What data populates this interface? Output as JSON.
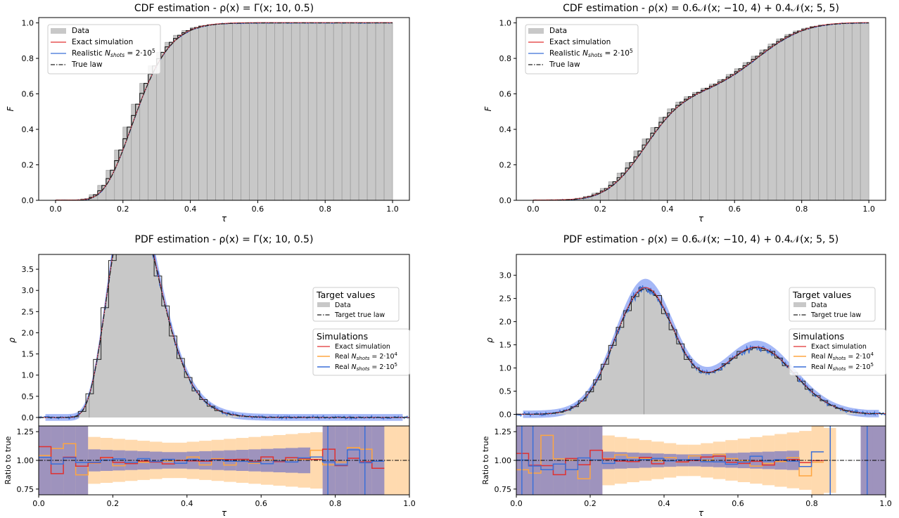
{
  "colors": {
    "data": "#c8c8c8",
    "exact": "#e03030",
    "realistic": "#3a6fd8",
    "true": "#222222",
    "orange": "#ffa640",
    "blueband": "#5b7df0",
    "overlap": "#8d86c0"
  },
  "chart_data": [
    {
      "type": "line",
      "title": "CDF estimation - ρ(x) = Γ(x; 10, 0.5)",
      "xlabel": "τ",
      "ylabel": "F",
      "xlim": [
        -0.05,
        1.05
      ],
      "ylim": [
        0,
        1.03
      ],
      "xticks": [
        "0.0",
        "0.2",
        "0.4",
        "0.6",
        "0.8",
        "1.0"
      ],
      "yticks": [
        "0.0",
        "0.2",
        "0.4",
        "0.6",
        "0.8",
        "1.0"
      ],
      "legend": {
        "position": "top-left",
        "entries": [
          "Data",
          "Exact simulation",
          "Realistic N_shots = 2·10^5",
          "True law"
        ]
      },
      "distribution": {
        "kind": "gamma",
        "shape": 10,
        "scale": 0.5,
        "x_range": [
          0,
          20
        ]
      }
    },
    {
      "type": "line",
      "title": "CDF estimation - ρ(x) = 0.6𝒩(x; −10, 4) + 0.4𝒩(x; 5, 5)",
      "xlabel": "τ",
      "ylabel": "F",
      "xlim": [
        -0.05,
        1.05
      ],
      "ylim": [
        0,
        1.03
      ],
      "xticks": [
        "0.0",
        "0.2",
        "0.4",
        "0.6",
        "0.8",
        "1.0"
      ],
      "yticks": [
        "0.0",
        "0.2",
        "0.4",
        "0.6",
        "0.8",
        "1.0"
      ],
      "legend": {
        "position": "top-left",
        "entries": [
          "Data",
          "Exact simulation",
          "Realistic N_shots = 2·10^5",
          "True law"
        ]
      },
      "distribution": {
        "kind": "gaussian-mixture",
        "components": [
          {
            "weight": 0.6,
            "mean": -10,
            "sd": 4
          },
          {
            "weight": 0.4,
            "mean": 5,
            "sd": 5
          }
        ],
        "x_range": [
          -25,
          20
        ]
      }
    },
    {
      "type": "line",
      "title": "PDF estimation - ρ(x) = Γ(x; 10, 0.5)",
      "xlabel": "",
      "ylabel": "ρ",
      "xlim": [
        -0.05,
        1.05
      ],
      "ylim": [
        -0.2,
        3.85
      ],
      "yticks": [
        "0.0",
        "0.5",
        "1.0",
        "1.5",
        "2.0",
        "2.5",
        "3.0",
        "3.5"
      ],
      "legend": {
        "position": "center-right",
        "target_title": "Target values",
        "target_entries": [
          "Data",
          "Target true law"
        ],
        "sim_title": "Simulations",
        "sim_entries": [
          "Exact simulation",
          "Real N_shots = 2·10^4",
          "Real N_shots = 2·10^5"
        ]
      }
    },
    {
      "type": "line",
      "title": "PDF estimation - ρ(x) = 0.6𝒩(x; −10, 4) + 0.4𝒩(x; 5, 5)",
      "xlabel": "",
      "ylabel": "ρ",
      "xlim": [
        -0.05,
        1.05
      ],
      "ylim": [
        -0.25,
        3.45
      ],
      "yticks": [
        "0.0",
        "0.5",
        "1.0",
        "1.5",
        "2.0",
        "2.5",
        "3.0"
      ],
      "legend": {
        "position": "center-right",
        "target_title": "Target values",
        "target_entries": [
          "Data",
          "Target true law"
        ],
        "sim_title": "Simulations",
        "sim_entries": [
          "Exact simulation",
          "Real N_shots = 2·10^4",
          "Real N_shots = 2·10^5"
        ]
      }
    },
    {
      "type": "line",
      "title": "",
      "xlabel": "τ",
      "ylabel": "Ratio to true",
      "xlim": [
        0,
        1
      ],
      "ylim": [
        0.7,
        1.3
      ],
      "xticks": [
        "0.0",
        "0.2",
        "0.4",
        "0.6",
        "0.8",
        "1.0"
      ],
      "yticks": [
        "0.75",
        "1.00",
        "1.25"
      ],
      "reference": 1.0
    },
    {
      "type": "line",
      "title": "",
      "xlabel": "τ",
      "ylabel": "Ratio to true",
      "xlim": [
        0,
        1
      ],
      "ylim": [
        0.7,
        1.3
      ],
      "xticks": [
        "0.0",
        "0.2",
        "0.4",
        "0.6",
        "0.8",
        "1.0"
      ],
      "yticks": [
        "0.75",
        "1.00",
        "1.25"
      ],
      "reference": 1.0
    }
  ],
  "legend_labels": {
    "data": "Data",
    "exact": "Exact simulation",
    "realistic_prefix": "Realistic ",
    "true_law": "True law",
    "target_values": "Target values",
    "target_true_law": "Target true law",
    "simulations": "Simulations",
    "real_prefix": "Real ",
    "nshots": "N",
    "nshots_sub": "shots",
    "eq_2e4": " = 2·10",
    "exp4": "4",
    "exp5": "5"
  }
}
